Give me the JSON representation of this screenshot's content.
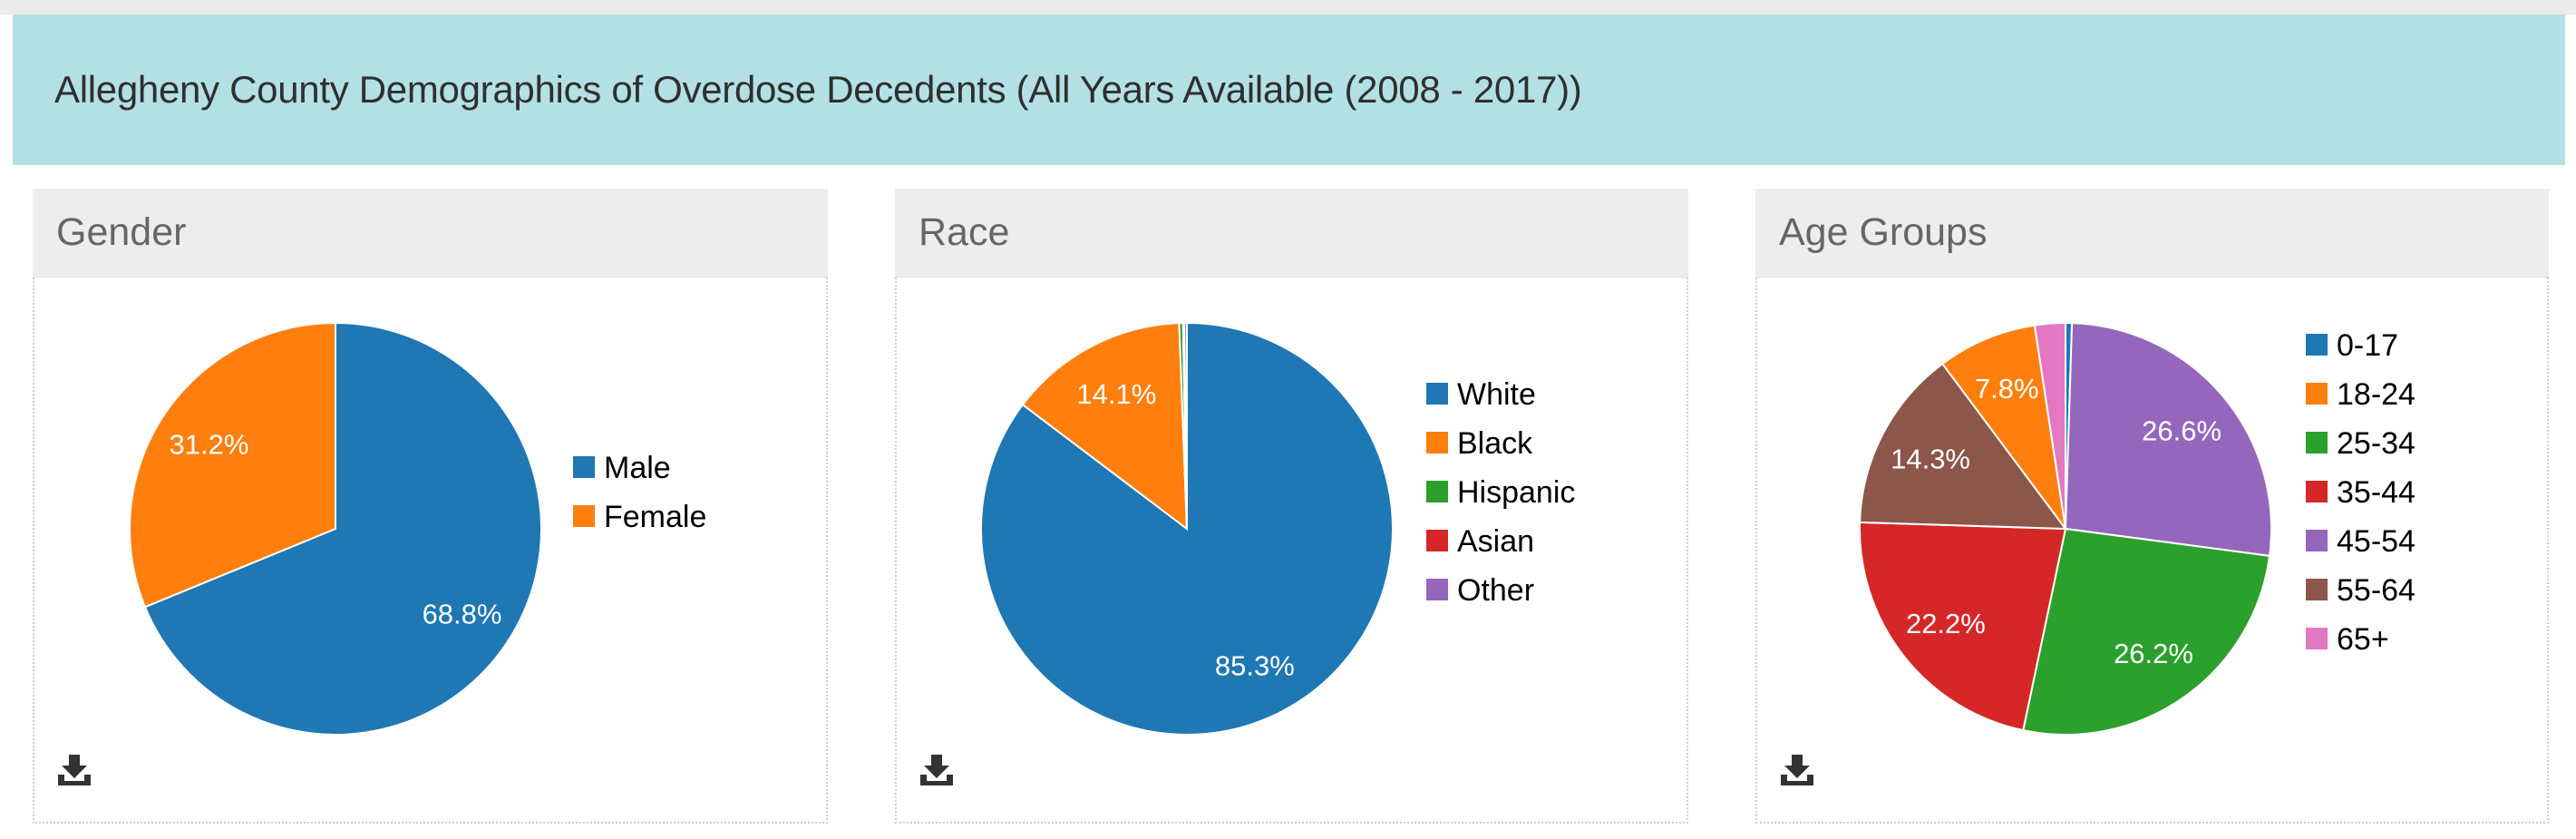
{
  "banner": {
    "title": "Allegheny County Demographics of Overdose Decedents (All Years Available (2008 - 2017))"
  },
  "download_icon": "download-tray-icon",
  "chart_data": [
    {
      "type": "pie",
      "title": "Gender",
      "legend_position": "right",
      "categories": [
        "Male",
        "Female"
      ],
      "values": [
        68.8,
        31.2
      ],
      "labels": [
        "68.8%",
        "31.2%"
      ],
      "colors": [
        "#1f77b4",
        "#ff7f0e"
      ]
    },
    {
      "type": "pie",
      "title": "Race",
      "legend_position": "right",
      "categories": [
        "White",
        "Black",
        "Hispanic",
        "Asian",
        "Other"
      ],
      "values": [
        85.3,
        14.1,
        0.3,
        0.1,
        0.2
      ],
      "labels": [
        "85.3%",
        "14.1%",
        "",
        "",
        ""
      ],
      "colors": [
        "#1f77b4",
        "#ff7f0e",
        "#2ca02c",
        "#d62728",
        "#9467bd"
      ]
    },
    {
      "type": "pie",
      "title": "Age Groups",
      "legend_position": "right",
      "categories": [
        "0-17",
        "18-24",
        "25-34",
        "35-44",
        "45-54",
        "55-64",
        "65+"
      ],
      "values": [
        0.5,
        7.8,
        26.2,
        22.2,
        26.6,
        14.3,
        2.4
      ],
      "labels": [
        "",
        "7.8%",
        "26.2%",
        "22.2%",
        "26.6%",
        "14.3%",
        ""
      ],
      "colors": [
        "#1f77b4",
        "#ff7f0e",
        "#2ca02c",
        "#d62728",
        "#9467bd",
        "#8c564b",
        "#e377c2"
      ],
      "draw_order": [
        0,
        4,
        2,
        3,
        5,
        1,
        6
      ]
    }
  ]
}
